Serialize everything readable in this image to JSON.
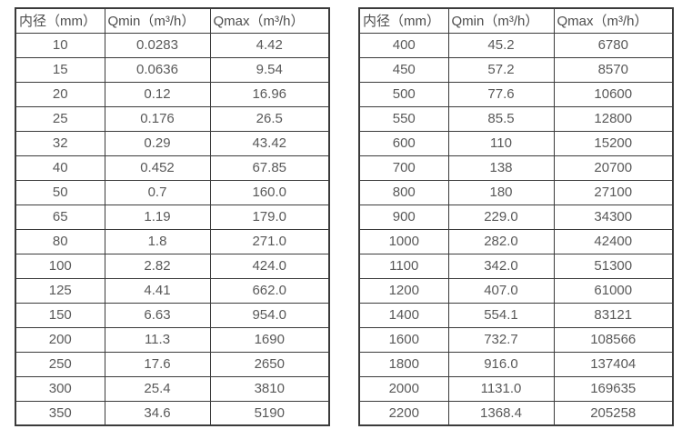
{
  "tables": [
    {
      "headers": [
        "内径（mm）",
        "Qmin（m³/h）",
        "Qmax（m³/h）"
      ],
      "rows": [
        [
          "10",
          "0.0283",
          "4.42"
        ],
        [
          "15",
          "0.0636",
          "9.54"
        ],
        [
          "20",
          "0.12",
          "16.96"
        ],
        [
          "25",
          "0.176",
          "26.5"
        ],
        [
          "32",
          "0.29",
          "43.42"
        ],
        [
          "40",
          "0.452",
          "67.85"
        ],
        [
          "50",
          "0.7",
          "160.0"
        ],
        [
          "65",
          "1.19",
          "179.0"
        ],
        [
          "80",
          "1.8",
          "271.0"
        ],
        [
          "100",
          "2.82",
          "424.0"
        ],
        [
          "125",
          "4.41",
          "662.0"
        ],
        [
          "150",
          "6.63",
          "954.0"
        ],
        [
          "200",
          "11.3",
          "1690"
        ],
        [
          "250",
          "17.6",
          "2650"
        ],
        [
          "300",
          "25.4",
          "3810"
        ],
        [
          "350",
          "34.6",
          "5190"
        ]
      ]
    },
    {
      "headers": [
        "内径（mm）",
        "Qmin（m³/h）",
        "Qmax（m³/h）"
      ],
      "rows": [
        [
          "400",
          "45.2",
          "6780"
        ],
        [
          "450",
          "57.2",
          "8570"
        ],
        [
          "500",
          "77.6",
          "10600"
        ],
        [
          "550",
          "85.5",
          "12800"
        ],
        [
          "600",
          "110",
          "15200"
        ],
        [
          "700",
          "138",
          "20700"
        ],
        [
          "800",
          "180",
          "27100"
        ],
        [
          "900",
          "229.0",
          "34300"
        ],
        [
          "1000",
          "282.0",
          "42400"
        ],
        [
          "1100",
          "342.0",
          "51300"
        ],
        [
          "1200",
          "407.0",
          "61000"
        ],
        [
          "1400",
          "554.1",
          "83121"
        ],
        [
          "1600",
          "732.7",
          "108566"
        ],
        [
          "1800",
          "916.0",
          "137404"
        ],
        [
          "2000",
          "1131.0",
          "169635"
        ],
        [
          "2200",
          "1368.4",
          "205258"
        ]
      ]
    }
  ],
  "chart_data": {
    "type": "table",
    "title": "",
    "columns": [
      "内径（mm）",
      "Qmin（m³/h）",
      "Qmax（m³/h）"
    ],
    "series": [
      {
        "name": "left-table",
        "diameter_mm": [
          10,
          15,
          20,
          25,
          32,
          40,
          50,
          65,
          80,
          100,
          125,
          150,
          200,
          250,
          300,
          350
        ],
        "qmin": [
          0.0283,
          0.0636,
          0.12,
          0.176,
          0.29,
          0.452,
          0.7,
          1.19,
          1.8,
          2.82,
          4.41,
          6.63,
          11.3,
          17.6,
          25.4,
          34.6
        ],
        "qmax": [
          4.42,
          9.54,
          16.96,
          26.5,
          43.42,
          67.85,
          160.0,
          179.0,
          271.0,
          424.0,
          662.0,
          954.0,
          1690,
          2650,
          3810,
          5190
        ]
      },
      {
        "name": "right-table",
        "diameter_mm": [
          400,
          450,
          500,
          550,
          600,
          700,
          800,
          900,
          1000,
          1100,
          1200,
          1400,
          1600,
          1800,
          2000,
          2200
        ],
        "qmin": [
          45.2,
          57.2,
          77.6,
          85.5,
          110,
          138,
          180,
          229.0,
          282.0,
          342.0,
          407.0,
          554.1,
          732.7,
          916.0,
          1131.0,
          1368.4
        ],
        "qmax": [
          6780,
          8570,
          10600,
          12800,
          15200,
          20700,
          27100,
          34300,
          42400,
          51300,
          61000,
          83121,
          108566,
          137404,
          169635,
          205258
        ]
      }
    ]
  }
}
